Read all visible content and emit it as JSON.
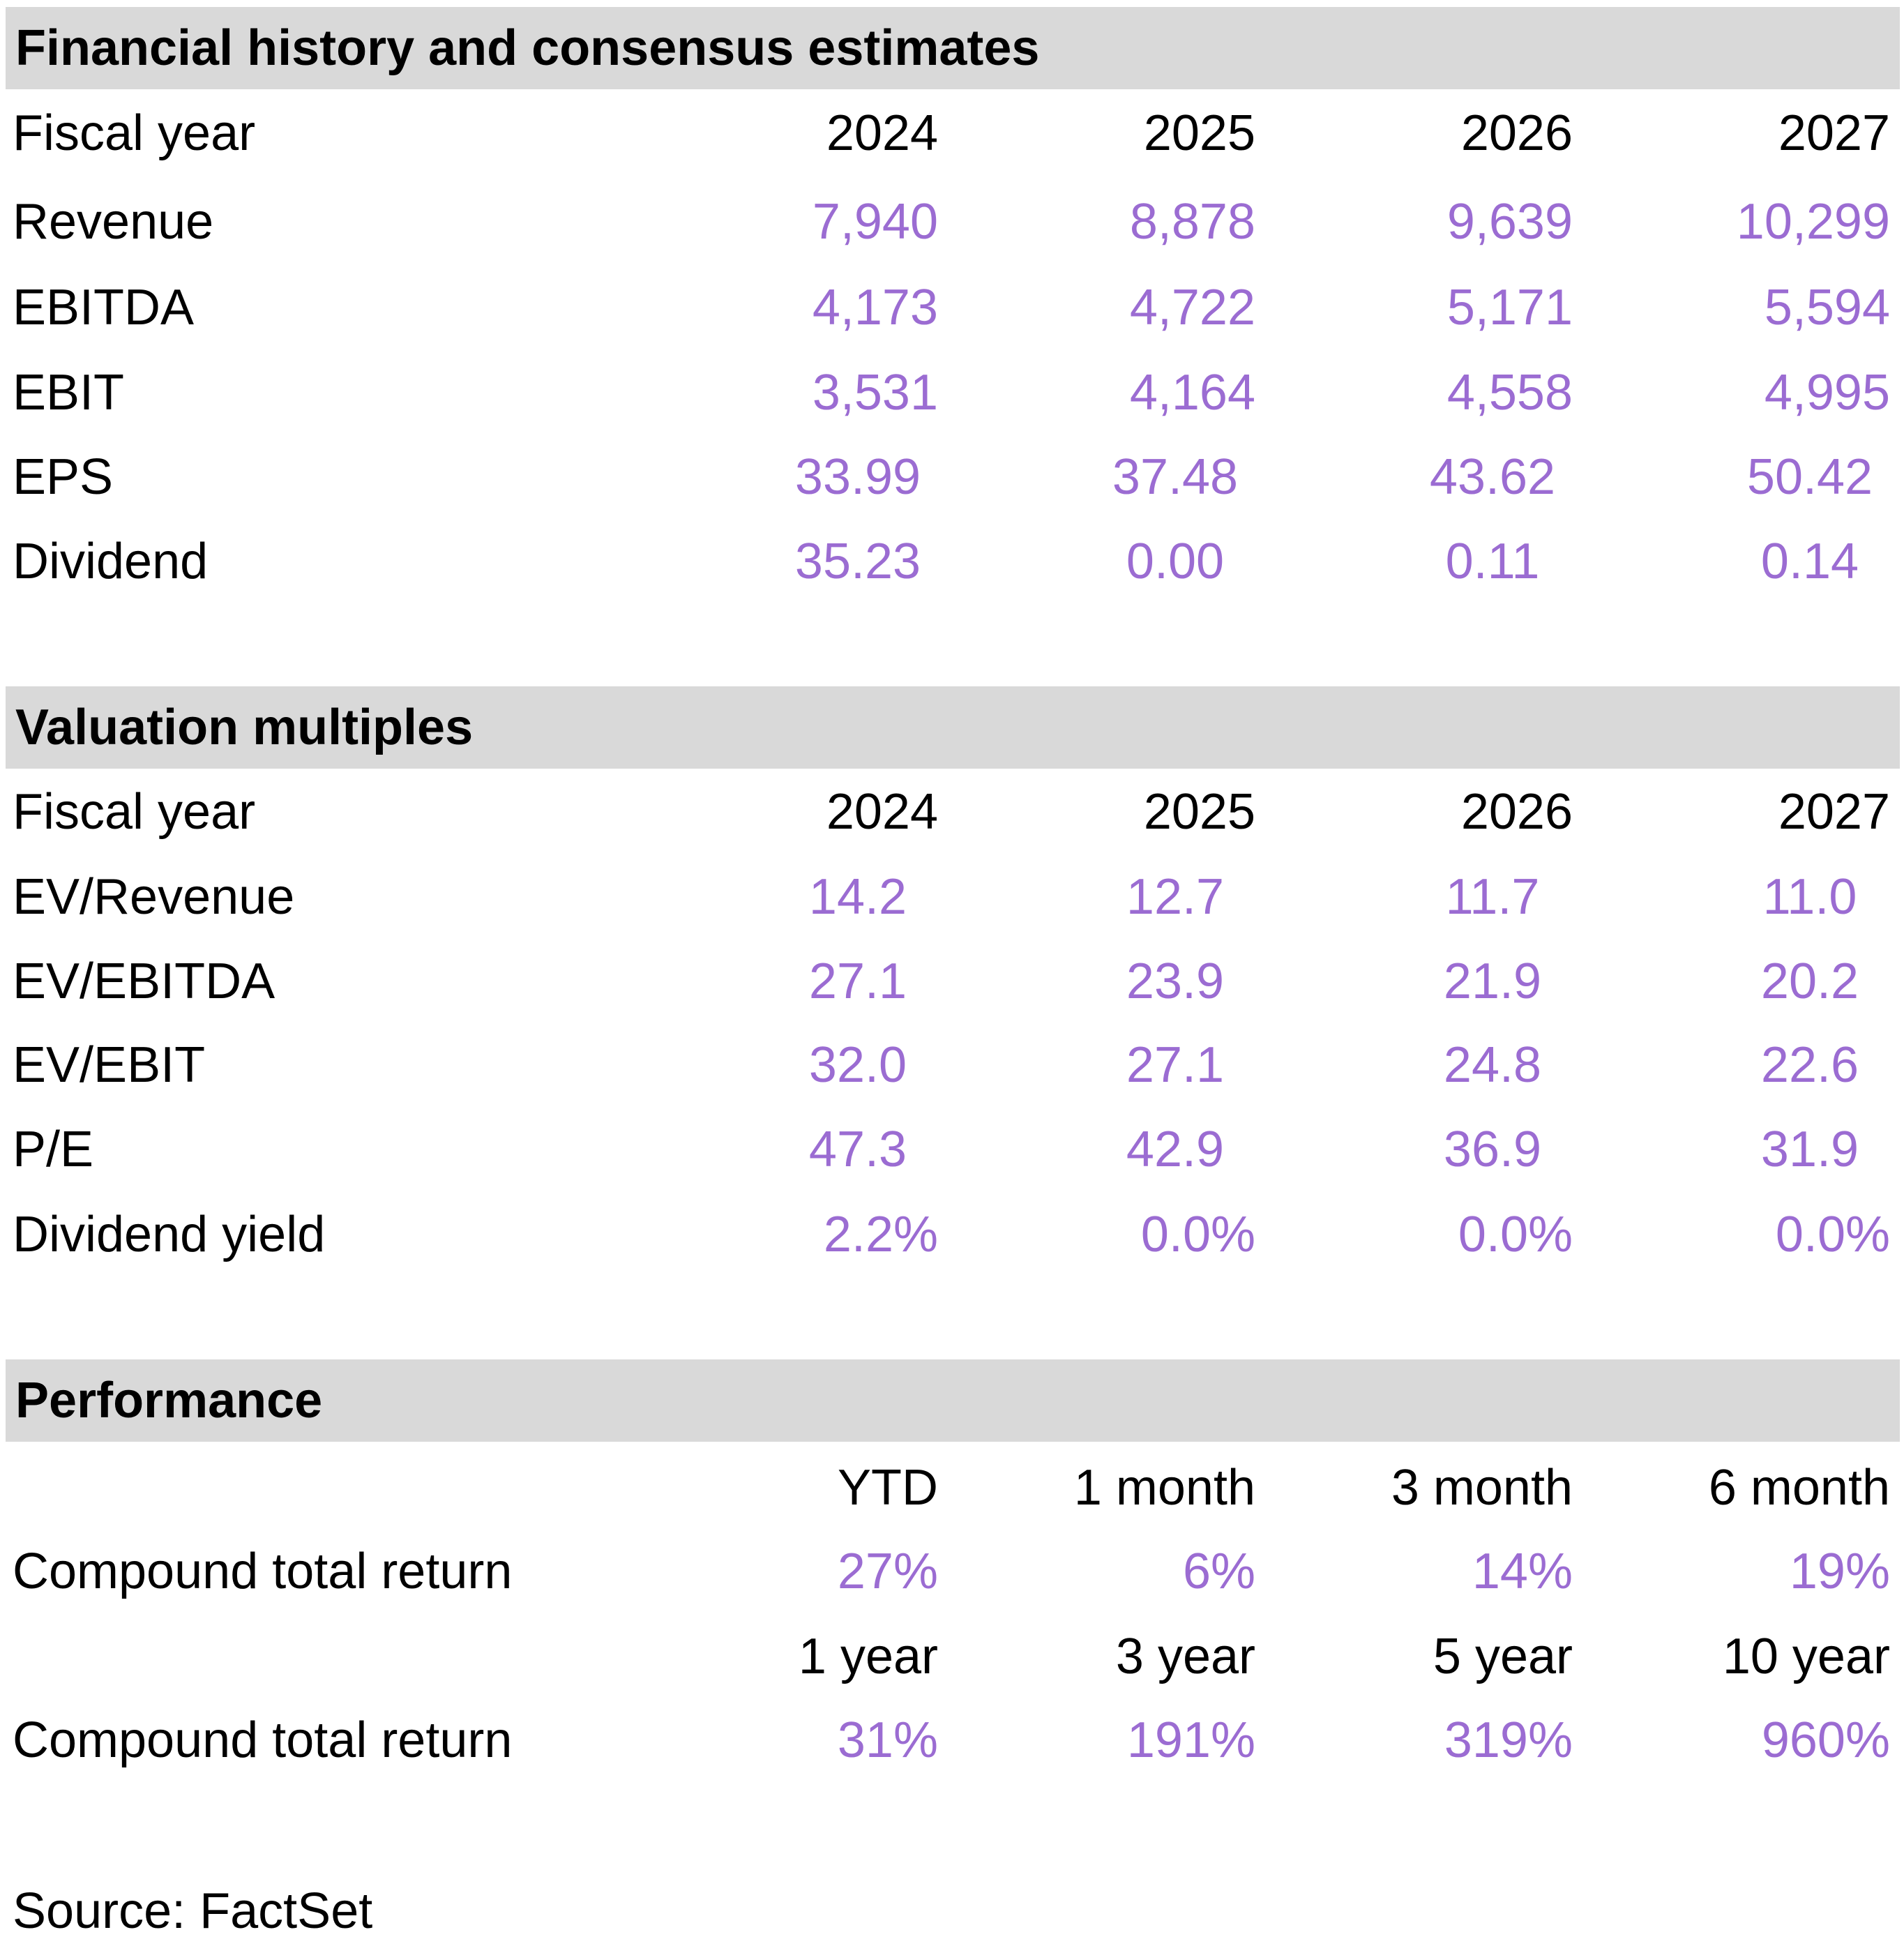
{
  "financial": {
    "title": "Financial history and consensus estimates",
    "header": {
      "label": "Fiscal year",
      "cols": [
        "2024",
        "2025",
        "2026",
        "2027"
      ]
    },
    "rows": [
      {
        "label": "Revenue",
        "values": [
          "7,940",
          "8,878",
          "9,639",
          "10,299"
        ]
      },
      {
        "label": "EBITDA",
        "values": [
          "4,173",
          "4,722",
          "5,171",
          "5,594"
        ]
      },
      {
        "label": "EBIT",
        "values": [
          "3,531",
          "4,164",
          "4,558",
          "4,995"
        ]
      },
      {
        "label": "EPS",
        "values": [
          "33.99",
          "37.48",
          "43.62",
          "50.42"
        ]
      },
      {
        "label": "Dividend",
        "values": [
          "35.23",
          "0.00",
          "0.11",
          "0.14"
        ]
      }
    ]
  },
  "valuation": {
    "title": "Valuation multiples",
    "header": {
      "label": "Fiscal year",
      "cols": [
        "2024",
        "2025",
        "2026",
        "2027"
      ]
    },
    "rows": [
      {
        "label": "EV/Revenue",
        "values": [
          "14.2",
          "12.7",
          "11.7",
          "11.0"
        ]
      },
      {
        "label": "EV/EBITDA",
        "values": [
          "27.1",
          "23.9",
          "21.9",
          "20.2"
        ]
      },
      {
        "label": "EV/EBIT",
        "values": [
          "32.0",
          "27.1",
          "24.8",
          "22.6"
        ]
      },
      {
        "label": "P/E",
        "values": [
          "47.3",
          "42.9",
          "36.9",
          "31.9"
        ]
      },
      {
        "label": "Dividend yield",
        "values": [
          "2.2%",
          "0.0%",
          "0.0%",
          "0.0%"
        ]
      }
    ]
  },
  "performance": {
    "title": "Performance",
    "header1": {
      "cols": [
        "YTD",
        "1 month",
        "3 month",
        "6 month"
      ]
    },
    "row1": {
      "label": "Compound total return",
      "values": [
        "27%",
        "6%",
        "14%",
        "19%"
      ]
    },
    "header2": {
      "cols": [
        "1 year",
        "3 year",
        "5 year",
        "10 year"
      ]
    },
    "row2": {
      "label": "Compound total return",
      "values": [
        "31%",
        "191%",
        "319%",
        "960%"
      ]
    }
  },
  "source": "Source: FactSet",
  "colors": {
    "header_band": "#d9d9d9",
    "value_text": "#9b6cd2",
    "label_text": "#000000"
  }
}
